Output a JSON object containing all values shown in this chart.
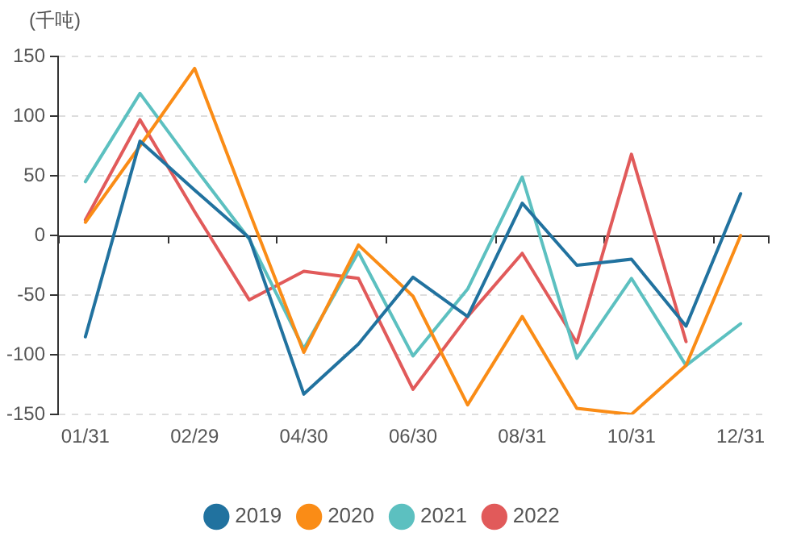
{
  "chart_data": {
    "type": "line",
    "ylabel": "(千吨)",
    "categories": [
      "01/31",
      null,
      "02/29",
      null,
      "04/30",
      null,
      "06/30",
      null,
      "08/31",
      null,
      "10/31",
      null,
      "12/31"
    ],
    "series": [
      {
        "name": "2019",
        "color": "#21729f",
        "values": [
          -85,
          79,
          38,
          -2,
          -133,
          -91,
          -35,
          -68,
          27,
          -25,
          -20,
          -76,
          35
        ]
      },
      {
        "name": "2020",
        "color": "#fa8c16",
        "values": [
          11,
          75,
          140,
          20,
          -98,
          -8,
          -51,
          -142,
          -68,
          -145,
          -150,
          -109,
          0
        ]
      },
      {
        "name": "2021",
        "color": "#5cc0c0",
        "values": [
          45,
          119,
          57,
          -3,
          -95,
          -14,
          -101,
          -45,
          49,
          -103,
          -36,
          -109,
          -74
        ]
      },
      {
        "name": "2022",
        "color": "#e15a5a",
        "values": [
          13,
          97,
          20,
          -54,
          -30,
          -36,
          -129,
          -68,
          -15,
          -90,
          68,
          -89,
          null
        ]
      }
    ],
    "ylim": [
      -150,
      150
    ],
    "yticks": [
      -150,
      -100,
      -50,
      0,
      50,
      100,
      150
    ],
    "grid": "y",
    "legend": "bottom",
    "marker": "none"
  }
}
